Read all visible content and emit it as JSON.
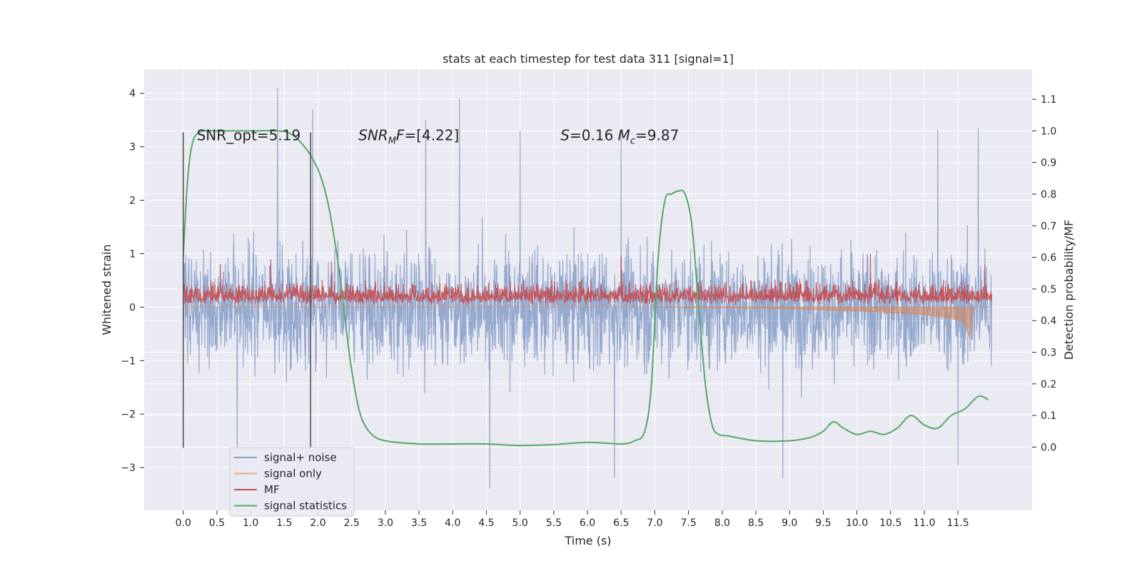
{
  "chart_data": {
    "type": "line",
    "title": "stats at each timestep for test data 311 [signal=1]",
    "xlabel": "Time (s)",
    "ylabel": "Whitened strain",
    "ylabel_right": "Detection probability/MF",
    "xlim": [
      -0.58,
      12.6
    ],
    "ylim": [
      -3.8,
      4.45
    ],
    "ylim_right": [
      -0.2,
      1.195
    ],
    "x_ticks": [
      0.0,
      0.5,
      1.0,
      1.5,
      2.0,
      2.5,
      3.0,
      3.5,
      4.0,
      4.5,
      5.0,
      5.5,
      6.0,
      6.5,
      7.0,
      7.5,
      8.0,
      8.5,
      9.0,
      9.5,
      10.0,
      10.5,
      11.0,
      11.5
    ],
    "x_tick_labels": [
      "0.0",
      "0.5",
      "1.0",
      "1.5",
      "2.0",
      "2.5",
      "3.0",
      "3.5",
      "4.0",
      "4.5",
      "5.0",
      "5.5",
      "6.0",
      "6.5",
      "7.0",
      "7.5",
      "8.0",
      "8.5",
      "9.0",
      "9.5",
      "10.0",
      "10.5",
      "11.0",
      "11.5"
    ],
    "y_ticks": [
      -3,
      -2,
      -1,
      0,
      1,
      2,
      3,
      4
    ],
    "y_tick_labels": [
      "−3",
      "−2",
      "−1",
      "0",
      "1",
      "2",
      "3",
      "4"
    ],
    "y_right_ticks": [
      0.0,
      0.1,
      0.2,
      0.3,
      0.4,
      0.5,
      0.6,
      0.7,
      0.8,
      0.9,
      1.0,
      1.1
    ],
    "y_right_tick_labels": [
      "0.0",
      "0.1",
      "0.2",
      "0.3",
      "0.4",
      "0.5",
      "0.6",
      "0.7",
      "0.8",
      "0.9",
      "1.0",
      "1.1"
    ],
    "grid": true,
    "legend_position": "lower-left",
    "series": [
      {
        "name": "signal+ noise",
        "color": "#4c72b0",
        "axis": "left",
        "x_range": [
          0.0,
          12.0
        ],
        "typical_band": [
          -2.0,
          2.1
        ],
        "peaks": [
          {
            "x": 1.4,
            "y": 4.1
          },
          {
            "x": 4.1,
            "y": 3.9
          },
          {
            "x": 1.92,
            "y": 3.7
          },
          {
            "x": 11.8,
            "y": 3.35
          },
          {
            "x": 11.2,
            "y": 3.32
          },
          {
            "x": 5.0,
            "y": 3.3
          },
          {
            "x": 6.5,
            "y": 3.3
          },
          {
            "x": 3.6,
            "y": 3.5
          },
          {
            "x": 4.55,
            "y": -3.4
          },
          {
            "x": 8.9,
            "y": -3.2
          },
          {
            "x": 6.4,
            "y": -3.2
          },
          {
            "x": 0.8,
            "y": -3.0
          },
          {
            "x": 11.5,
            "y": -2.95
          }
        ]
      },
      {
        "name": "signal only",
        "color": "#dd8452",
        "axis": "left",
        "x": [
          0.0,
          7.0,
          7.5,
          8.0,
          8.5,
          9.0,
          9.5,
          10.0,
          10.5,
          11.0,
          11.3,
          11.5,
          11.6,
          11.65,
          11.68,
          11.72,
          12.0
        ],
        "y": [
          0.0,
          0.0,
          -0.01,
          -0.01,
          -0.02,
          -0.03,
          -0.05,
          -0.07,
          -0.1,
          -0.14,
          -0.19,
          -0.24,
          -0.3,
          -0.45,
          -0.6,
          0.0,
          0.0
        ]
      },
      {
        "name": "MF",
        "color": "#c44e52",
        "axis": "left",
        "x_range": [
          0.0,
          12.0
        ],
        "baseline": 0.04,
        "typical_top": 0.5,
        "peaks": [
          {
            "x": 1.3,
            "y": 0.9
          },
          {
            "x": 2.2,
            "y": 0.85
          },
          {
            "x": 6.5,
            "y": 0.95
          },
          {
            "x": 10.2,
            "y": 1.0
          },
          {
            "x": 0.55,
            "y": 0.8
          },
          {
            "x": 11.9,
            "y": 0.8
          }
        ]
      },
      {
        "name": "signal statistics",
        "color": "#55a868",
        "axis": "right",
        "x": [
          0.0,
          0.05,
          0.1,
          0.15,
          0.2,
          0.3,
          0.5,
          1.0,
          1.4,
          1.6,
          1.8,
          1.95,
          2.05,
          2.15,
          2.25,
          2.35,
          2.45,
          2.55,
          2.65,
          2.8,
          3.0,
          3.5,
          4.0,
          4.5,
          5.0,
          5.5,
          6.0,
          6.5,
          6.7,
          6.85,
          6.95,
          7.05,
          7.15,
          7.25,
          7.35,
          7.45,
          7.55,
          7.65,
          7.75,
          7.85,
          7.95,
          8.1,
          8.5,
          9.0,
          9.3,
          9.5,
          9.65,
          9.8,
          10.0,
          10.2,
          10.4,
          10.6,
          10.8,
          11.0,
          11.2,
          11.4,
          11.6,
          11.8,
          11.95
        ],
        "y": [
          0.6,
          0.8,
          0.92,
          0.97,
          0.99,
          1.0,
          1.0,
          1.0,
          1.0,
          0.99,
          0.95,
          0.9,
          0.85,
          0.77,
          0.65,
          0.5,
          0.32,
          0.18,
          0.09,
          0.04,
          0.02,
          0.01,
          0.01,
          0.01,
          0.005,
          0.008,
          0.015,
          0.01,
          0.02,
          0.05,
          0.2,
          0.6,
          0.78,
          0.8,
          0.81,
          0.8,
          0.7,
          0.45,
          0.2,
          0.07,
          0.04,
          0.035,
          0.02,
          0.02,
          0.03,
          0.05,
          0.08,
          0.06,
          0.04,
          0.05,
          0.04,
          0.06,
          0.1,
          0.07,
          0.06,
          0.1,
          0.12,
          0.16,
          0.15
        ]
      }
    ],
    "vertical_lines": [
      {
        "x": 0.0,
        "y_range": [
          -2.63,
          3.27
        ],
        "color": "#555555"
      },
      {
        "x": 1.89,
        "y_range": [
          -2.63,
          3.27
        ],
        "color": "#555555"
      }
    ],
    "annotations": [
      {
        "text": "SNR_opt=5.19",
        "x": 0.2,
        "y": 3.12
      },
      {
        "text": "SNR_MF=[4.22]",
        "x": 2.6,
        "y": 3.12
      },
      {
        "text": "S=0.16   M_c=9.87",
        "x": 5.6,
        "y": 3.12
      }
    ]
  }
}
